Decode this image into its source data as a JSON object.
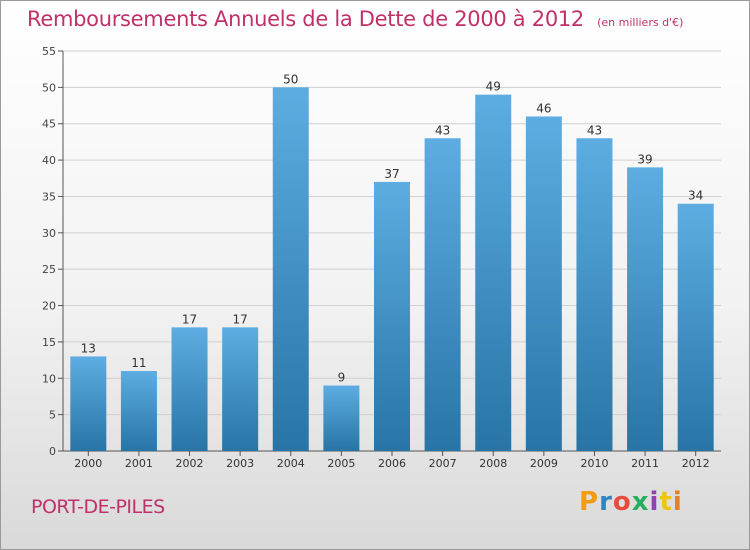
{
  "header": {
    "title": "Remboursements Annuels de la Dette de 2000 à 2012",
    "subtitle": "(en milliers d'€)"
  },
  "footer": {
    "commune": "PORT-DE-PILES",
    "logo_text": "Proxiti",
    "logo_colors": [
      "#f39c12",
      "#2e86c1",
      "#e74c3c",
      "#27ae60",
      "#8e44ad",
      "#f1c40f",
      "#e67e22"
    ]
  },
  "chart_data": {
    "type": "bar",
    "title": "Remboursements Annuels de la Dette de 2000 à 2012",
    "xlabel": "",
    "ylabel": "",
    "categories": [
      "2000",
      "2001",
      "2002",
      "2003",
      "2004",
      "2005",
      "2006",
      "2007",
      "2008",
      "2009",
      "2010",
      "2011",
      "2012"
    ],
    "values": [
      13,
      11,
      17,
      17,
      50,
      9,
      37,
      43,
      49,
      46,
      43,
      39,
      34
    ],
    "ylim": [
      0,
      55
    ],
    "yticks": [
      0,
      5,
      10,
      15,
      20,
      25,
      30,
      35,
      40,
      45,
      50,
      55
    ],
    "grid": "horizontal",
    "bar_color_top": "#5dade2",
    "bar_color_bottom": "#2874a6"
  }
}
